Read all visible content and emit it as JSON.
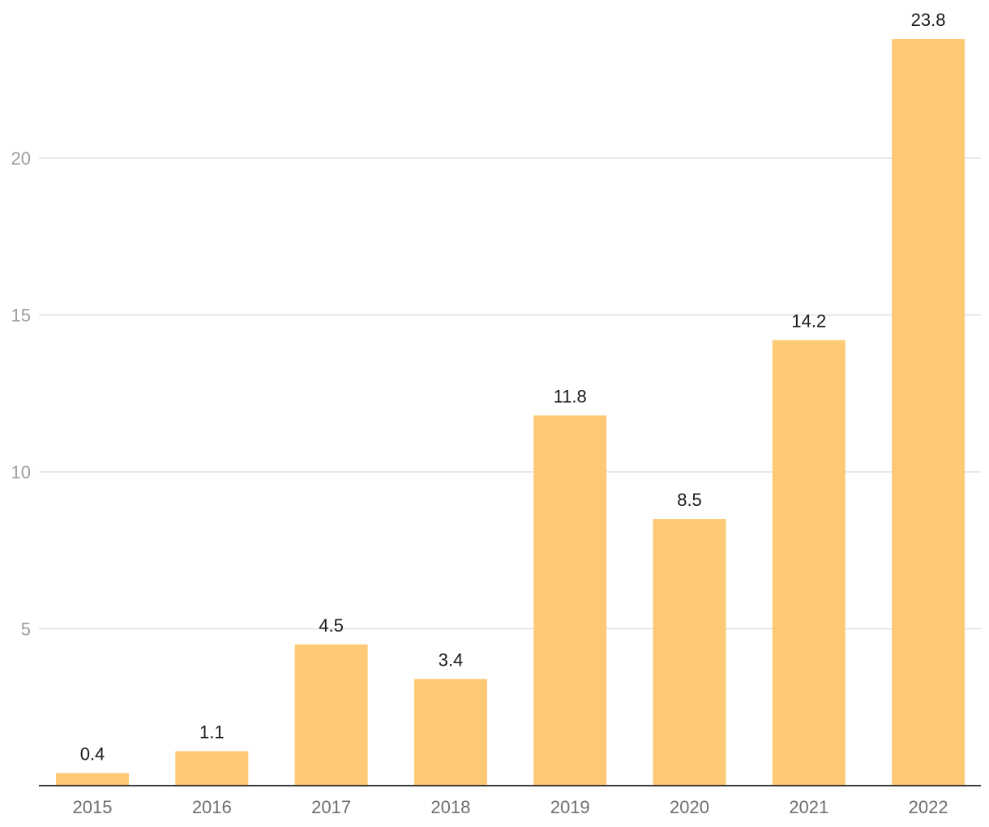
{
  "chart_data": {
    "type": "bar",
    "title": "",
    "xlabel": "",
    "ylabel": "",
    "categories": [
      "2015",
      "2016",
      "2017",
      "2018",
      "2019",
      "2020",
      "2021",
      "2022"
    ],
    "values": [
      0.4,
      1.1,
      4.5,
      3.4,
      11.8,
      8.5,
      14.2,
      23.8
    ],
    "data_labels": [
      "0.4",
      "1.1",
      "4.5",
      "3.4",
      "11.8",
      "8.5",
      "14.2",
      "23.8"
    ],
    "yticks": [
      5,
      10,
      15,
      20
    ],
    "ytick_labels": [
      "5",
      "10",
      "15",
      "20"
    ],
    "ylim": [
      0,
      23.8
    ],
    "grid": true,
    "legend": "none",
    "bar_color": "#fdc975"
  }
}
